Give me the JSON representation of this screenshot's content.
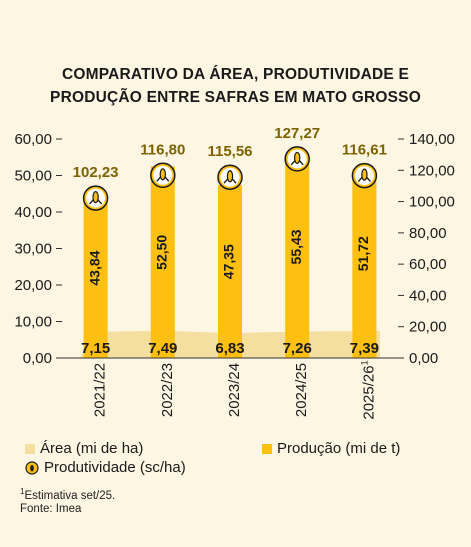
{
  "chart_data": {
    "type": "bar",
    "title_line1": "COMPARATIVO DA ÁREA, PRODUTIVIDADE E",
    "title_line2": "PRODUÇÃO ENTRE SAFRAS EM MATO GROSSO",
    "categories": [
      "2021/22",
      "2022/23",
      "2023/24",
      "2024/25",
      "2025/26"
    ],
    "last_category_footnote": "1",
    "series": [
      {
        "name": "Área (mi de ha)",
        "type": "area",
        "axis": "left",
        "values": [
          7.15,
          7.49,
          6.83,
          7.26,
          7.39
        ],
        "labels": [
          "7,15",
          "7,49",
          "6,83",
          "7,26",
          "7,39"
        ]
      },
      {
        "name": "Produção (mi de t)",
        "type": "bar",
        "axis": "left",
        "values": [
          43.84,
          52.5,
          47.35,
          55.43,
          51.72
        ],
        "labels": [
          "43,84",
          "52,50",
          "47,35",
          "55,43",
          "51,72"
        ]
      },
      {
        "name": "Produtividade (sc/ha)",
        "type": "marker",
        "axis": "right",
        "values": [
          102.23,
          116.8,
          115.56,
          127.27,
          116.61
        ],
        "labels": [
          "102,23",
          "116,80",
          "115,56",
          "127,27",
          "116,61"
        ]
      }
    ],
    "y_left": {
      "min": 0,
      "max": 60,
      "ticks": [
        "0,00",
        "10,00",
        "20,00",
        "30,00",
        "40,00",
        "50,00",
        "60,00"
      ]
    },
    "y_right": {
      "min": 0,
      "max": 140,
      "ticks": [
        "0,00",
        "20,00",
        "40,00",
        "60,00",
        "80,00",
        "100,00",
        "120,00",
        "140,00"
      ]
    },
    "colors": {
      "bar": "#fdbf10",
      "area": "#f5dfa0",
      "label_gold": "#7d6300",
      "background": "#fdf6e3"
    },
    "legend": {
      "area": "Área (mi de ha)",
      "production": "Produção (mi de t)",
      "productivity": "Produtividade (sc/ha)"
    },
    "footnote_mark": "1",
    "footnote": "Estimativa set/25.",
    "source": "Fonte: Imea"
  }
}
